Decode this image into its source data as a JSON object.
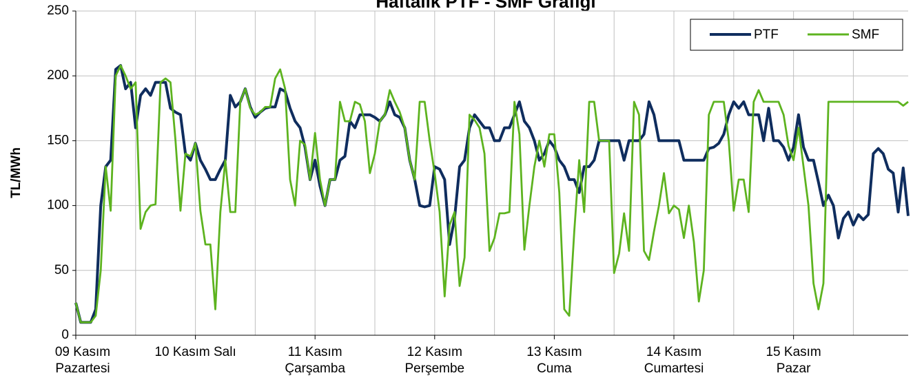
{
  "chart_data": {
    "type": "line",
    "title": "Haftalık PTF - SMF Grafiği",
    "y_label": "TL/MWh",
    "categories": [
      "09 Kasım\nPazartesi",
      null,
      null,
      null,
      null,
      null,
      null,
      null,
      null,
      null,
      null,
      null,
      null,
      null,
      null,
      null,
      null,
      null,
      null,
      null,
      null,
      null,
      null,
      null,
      "10 Kasım Salı",
      null,
      null,
      null,
      null,
      null,
      null,
      null,
      null,
      null,
      null,
      null,
      null,
      null,
      null,
      null,
      null,
      null,
      null,
      null,
      null,
      null,
      null,
      null,
      "11 Kasım\nÇarşamba",
      null,
      null,
      null,
      null,
      null,
      null,
      null,
      null,
      null,
      null,
      null,
      null,
      null,
      null,
      null,
      null,
      null,
      null,
      null,
      null,
      null,
      null,
      null,
      "12 Kasım\nPerşembe",
      null,
      null,
      null,
      null,
      null,
      null,
      null,
      null,
      null,
      null,
      null,
      null,
      null,
      null,
      null,
      null,
      null,
      null,
      null,
      null,
      null,
      null,
      null,
      "13 Kasım\nCuma",
      null,
      null,
      null,
      null,
      null,
      null,
      null,
      null,
      null,
      null,
      null,
      null,
      null,
      null,
      null,
      null,
      null,
      null,
      null,
      null,
      null,
      null,
      null,
      "14 Kasım\nCumartesi",
      null,
      null,
      null,
      null,
      null,
      null,
      null,
      null,
      null,
      null,
      null,
      null,
      null,
      null,
      null,
      null,
      null,
      null,
      null,
      null,
      null,
      null,
      null,
      "15 Kasım\nPazar",
      null,
      null,
      null,
      null,
      null,
      null,
      null,
      null,
      null,
      null,
      null,
      null,
      null,
      null,
      null,
      null,
      null,
      null,
      null,
      null,
      null,
      null,
      null
    ],
    "series": [
      {
        "name": "PTF",
        "color": "#0f2d5e",
        "values": [
          25,
          10,
          10,
          10,
          20,
          100,
          130,
          135,
          205,
          208,
          190,
          195,
          160,
          185,
          190,
          185,
          195,
          195,
          195,
          175,
          172,
          170,
          140,
          135,
          148,
          135,
          128,
          120,
          120,
          128,
          135,
          185,
          176,
          180,
          190,
          176,
          168,
          172,
          175,
          176,
          176,
          190,
          188,
          175,
          165,
          160,
          145,
          120,
          135,
          115,
          100,
          120,
          120,
          135,
          138,
          165,
          160,
          170,
          170,
          170,
          168,
          165,
          170,
          180,
          170,
          168,
          160,
          135,
          120,
          100,
          99,
          100,
          130,
          128,
          120,
          70,
          90,
          130,
          135,
          160,
          170,
          165,
          160,
          160,
          150,
          150,
          160,
          160,
          170,
          180,
          165,
          160,
          150,
          135,
          140,
          150,
          145,
          135,
          130,
          120,
          120,
          110,
          130,
          130,
          135,
          150,
          150,
          150,
          150,
          150,
          135,
          150,
          150,
          150,
          155,
          180,
          170,
          150,
          150,
          150,
          150,
          150,
          135,
          135,
          135,
          135,
          135,
          144,
          145,
          148,
          155,
          170,
          180,
          175,
          180,
          170,
          170,
          170,
          150,
          175,
          150,
          150,
          145,
          135,
          145,
          170,
          145,
          135,
          135,
          118,
          100,
          108,
          100,
          75,
          90,
          95,
          85,
          93,
          89,
          93,
          140,
          144,
          140,
          128,
          125,
          95,
          129,
          92
        ]
      },
      {
        "name": "SMF",
        "color": "#5db31f",
        "values": [
          25,
          10,
          10,
          10,
          15,
          50,
          130,
          96,
          200,
          208,
          200,
          190,
          195,
          82,
          95,
          100,
          101,
          195,
          198,
          195,
          150,
          96,
          140,
          138,
          148,
          96,
          70,
          70,
          20,
          95,
          135,
          95,
          95,
          180,
          190,
          175,
          170,
          172,
          176,
          176,
          198,
          205,
          190,
          120,
          100,
          150,
          147,
          120,
          156,
          120,
          100,
          120,
          120,
          180,
          165,
          165,
          180,
          178,
          165,
          125,
          140,
          165,
          170,
          189,
          180,
          172,
          160,
          135,
          120,
          180,
          180,
          150,
          125,
          95,
          30,
          85,
          95,
          38,
          60,
          170,
          166,
          160,
          140,
          65,
          75,
          94,
          94,
          95,
          180,
          155,
          66,
          100,
          130,
          150,
          130,
          155,
          155,
          110,
          20,
          15,
          80,
          135,
          95,
          180,
          180,
          150,
          150,
          150,
          48,
          63,
          94,
          65,
          180,
          170,
          65,
          58,
          80,
          100,
          125,
          94,
          100,
          97,
          75,
          100,
          72,
          26,
          50,
          170,
          180,
          180,
          180,
          150,
          96,
          120,
          120,
          95,
          180,
          189,
          180,
          180,
          180,
          180,
          170,
          146,
          135,
          160,
          130,
          100,
          40,
          20,
          40,
          180,
          180,
          180,
          180,
          180,
          180,
          180,
          180,
          180,
          180,
          180,
          180,
          180,
          180,
          180,
          177,
          180
        ]
      }
    ],
    "ylim": [
      0,
      250
    ],
    "yticks": [
      0,
      50,
      100,
      150,
      200,
      250
    ],
    "grid": true,
    "legend": "top-right"
  }
}
